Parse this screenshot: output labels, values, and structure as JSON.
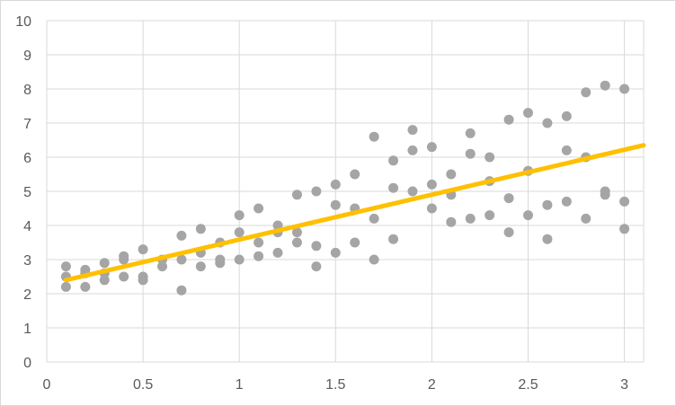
{
  "chart_data": {
    "type": "scatter",
    "title": "",
    "xlabel": "",
    "ylabel": "",
    "xlim": [
      0,
      3.1
    ],
    "ylim": [
      0,
      10
    ],
    "x_ticks": [
      0,
      0.5,
      1,
      1.5,
      2,
      2.5,
      3
    ],
    "x_tick_labels": [
      "0",
      "0.5",
      "1",
      "1.5",
      "2",
      "2.5",
      "3"
    ],
    "y_ticks": [
      0,
      1,
      2,
      3,
      4,
      5,
      6,
      7,
      8,
      9,
      10
    ],
    "y_tick_labels": [
      "0",
      "1",
      "2",
      "3",
      "4",
      "5",
      "6",
      "7",
      "8",
      "9",
      "10"
    ],
    "grid": true,
    "legend": "none",
    "series": [
      {
        "type": "scatter",
        "color": "#a5a5a5",
        "points": [
          [
            0.1,
            2.8
          ],
          [
            0.1,
            2.5
          ],
          [
            0.1,
            2.2
          ],
          [
            0.2,
            2.7
          ],
          [
            0.2,
            2.6
          ],
          [
            0.2,
            2.2
          ],
          [
            0.3,
            2.9
          ],
          [
            0.3,
            2.6
          ],
          [
            0.3,
            2.4
          ],
          [
            0.4,
            3.1
          ],
          [
            0.4,
            3.0
          ],
          [
            0.4,
            2.5
          ],
          [
            0.5,
            3.3
          ],
          [
            0.5,
            2.5
          ],
          [
            0.5,
            2.4
          ],
          [
            0.6,
            3.0
          ],
          [
            0.6,
            2.8
          ],
          [
            0.7,
            3.7
          ],
          [
            0.7,
            3.0
          ],
          [
            0.7,
            2.1
          ],
          [
            0.8,
            3.9
          ],
          [
            0.8,
            3.2
          ],
          [
            0.8,
            2.8
          ],
          [
            0.9,
            3.5
          ],
          [
            0.9,
            3.0
          ],
          [
            0.9,
            2.9
          ],
          [
            1.0,
            4.3
          ],
          [
            1.0,
            3.8
          ],
          [
            1.0,
            3.0
          ],
          [
            1.1,
            4.5
          ],
          [
            1.1,
            3.5
          ],
          [
            1.1,
            3.1
          ],
          [
            1.2,
            4.0
          ],
          [
            1.2,
            3.8
          ],
          [
            1.2,
            3.2
          ],
          [
            1.3,
            4.9
          ],
          [
            1.3,
            3.8
          ],
          [
            1.3,
            3.5
          ],
          [
            1.4,
            5.0
          ],
          [
            1.4,
            3.4
          ],
          [
            1.4,
            2.8
          ],
          [
            1.5,
            5.2
          ],
          [
            1.5,
            4.6
          ],
          [
            1.5,
            3.2
          ],
          [
            1.6,
            5.5
          ],
          [
            1.6,
            4.5
          ],
          [
            1.6,
            3.5
          ],
          [
            1.7,
            6.6
          ],
          [
            1.7,
            4.2
          ],
          [
            1.7,
            3.0
          ],
          [
            1.8,
            5.9
          ],
          [
            1.8,
            5.1
          ],
          [
            1.8,
            3.6
          ],
          [
            1.9,
            6.8
          ],
          [
            1.9,
            6.2
          ],
          [
            1.9,
            5.0
          ],
          [
            2.0,
            6.3
          ],
          [
            2.0,
            5.2
          ],
          [
            2.0,
            4.5
          ],
          [
            2.1,
            5.5
          ],
          [
            2.1,
            4.9
          ],
          [
            2.1,
            4.1
          ],
          [
            2.2,
            6.7
          ],
          [
            2.2,
            6.1
          ],
          [
            2.2,
            4.2
          ],
          [
            2.3,
            6.0
          ],
          [
            2.3,
            5.3
          ],
          [
            2.3,
            4.3
          ],
          [
            2.4,
            7.1
          ],
          [
            2.4,
            4.8
          ],
          [
            2.4,
            3.8
          ],
          [
            2.5,
            7.3
          ],
          [
            2.5,
            5.6
          ],
          [
            2.5,
            4.3
          ],
          [
            2.6,
            7.0
          ],
          [
            2.6,
            4.6
          ],
          [
            2.6,
            3.6
          ],
          [
            2.7,
            7.2
          ],
          [
            2.7,
            6.2
          ],
          [
            2.7,
            4.7
          ],
          [
            2.8,
            7.9
          ],
          [
            2.8,
            6.0
          ],
          [
            2.8,
            4.2
          ],
          [
            2.9,
            8.1
          ],
          [
            2.9,
            5.0
          ],
          [
            2.9,
            4.9
          ],
          [
            3.0,
            8.0
          ],
          [
            3.0,
            4.7
          ],
          [
            3.0,
            3.9
          ]
        ]
      },
      {
        "type": "line",
        "color": "#ffc000",
        "x": [
          0.1,
          3.1
        ],
        "y": [
          2.4,
          6.35
        ]
      }
    ]
  }
}
